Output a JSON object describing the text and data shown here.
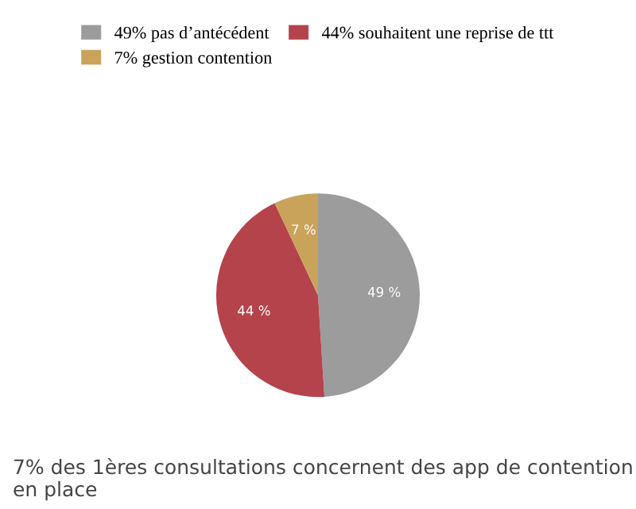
{
  "chart_data": {
    "type": "pie",
    "categories": [
      "49% pas d’antécédent",
      "44% souhaitent une reprise de ttt",
      "7% gestion contention"
    ],
    "values": [
      49,
      44,
      7
    ],
    "colors": [
      "#9c9c9c",
      "#b5434c",
      "#c9a35a"
    ],
    "value_labels": [
      "49 %",
      "44 %",
      "7 %"
    ],
    "legend": "top",
    "annotations": [
      "7% des 1ères consultations concernent des app de contention en place"
    ]
  }
}
